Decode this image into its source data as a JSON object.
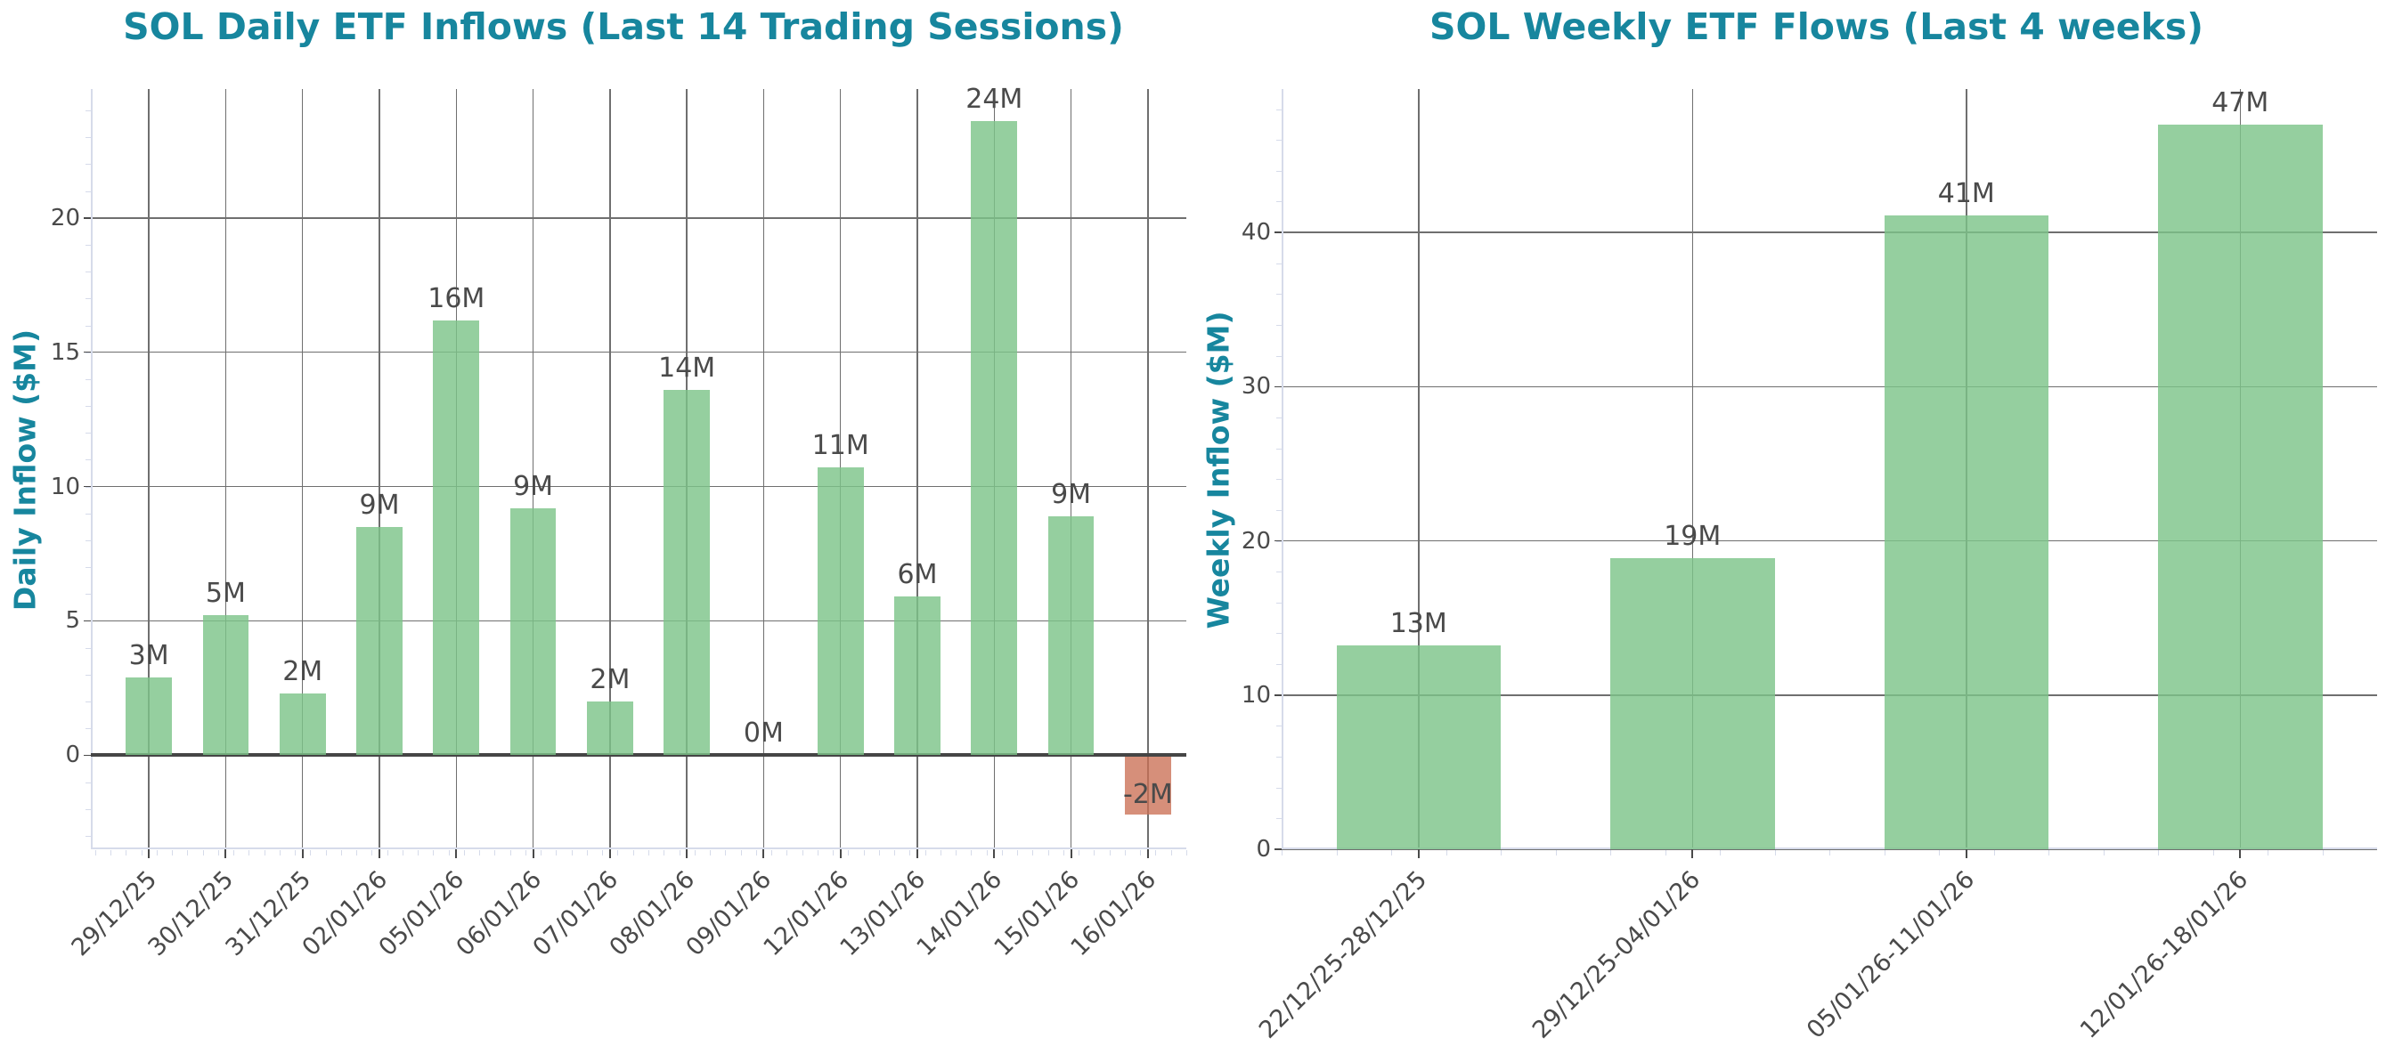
{
  "colors": {
    "title": "#17869e",
    "positive_bar": "#7cc489",
    "negative_bar": "#cb7054",
    "text": "#4a4a4a",
    "grid": "#6f6f6f",
    "axis": "#d6dbea"
  },
  "chart_data": [
    {
      "type": "bar",
      "title": "SOL Daily ETF Inflows (Last 14 Trading Sessions)",
      "xlabel": "",
      "ylabel": "Daily Inflow ($M)",
      "ylim": [
        -3.5,
        24.8
      ],
      "yticks": [
        0,
        5,
        10,
        15,
        20
      ],
      "grid": true,
      "legend": null,
      "categories": [
        "29/12/25",
        "30/12/25",
        "31/12/25",
        "02/01/26",
        "05/01/26",
        "06/01/26",
        "07/01/26",
        "08/01/26",
        "09/01/26",
        "12/01/26",
        "13/01/26",
        "14/01/26",
        "15/01/26",
        "16/01/26"
      ],
      "values": [
        2.9,
        5.2,
        2.3,
        8.5,
        16.2,
        9.2,
        2.0,
        13.6,
        0.0,
        10.7,
        5.9,
        23.6,
        8.9,
        -2.2
      ],
      "data_labels": [
        "3M",
        "5M",
        "2M",
        "9M",
        "16M",
        "9M",
        "2M",
        "14M",
        "0M",
        "11M",
        "6M",
        "24M",
        "9M",
        "-2M"
      ]
    },
    {
      "type": "bar",
      "title": "SOL Weekly ETF Flows (Last 4 weeks)",
      "xlabel": "",
      "ylabel": "Weekly Inflow ($M)",
      "ylim": [
        0,
        49.3
      ],
      "yticks": [
        0,
        10,
        20,
        30,
        40
      ],
      "grid": true,
      "legend": null,
      "categories": [
        "22/12/25-28/12/25",
        "29/12/25-04/01/26",
        "05/01/26-11/01/26",
        "12/01/26-18/01/26"
      ],
      "values": [
        13.2,
        18.9,
        41.1,
        47.0
      ],
      "data_labels": [
        "13M",
        "19M",
        "41M",
        "47M"
      ]
    }
  ]
}
